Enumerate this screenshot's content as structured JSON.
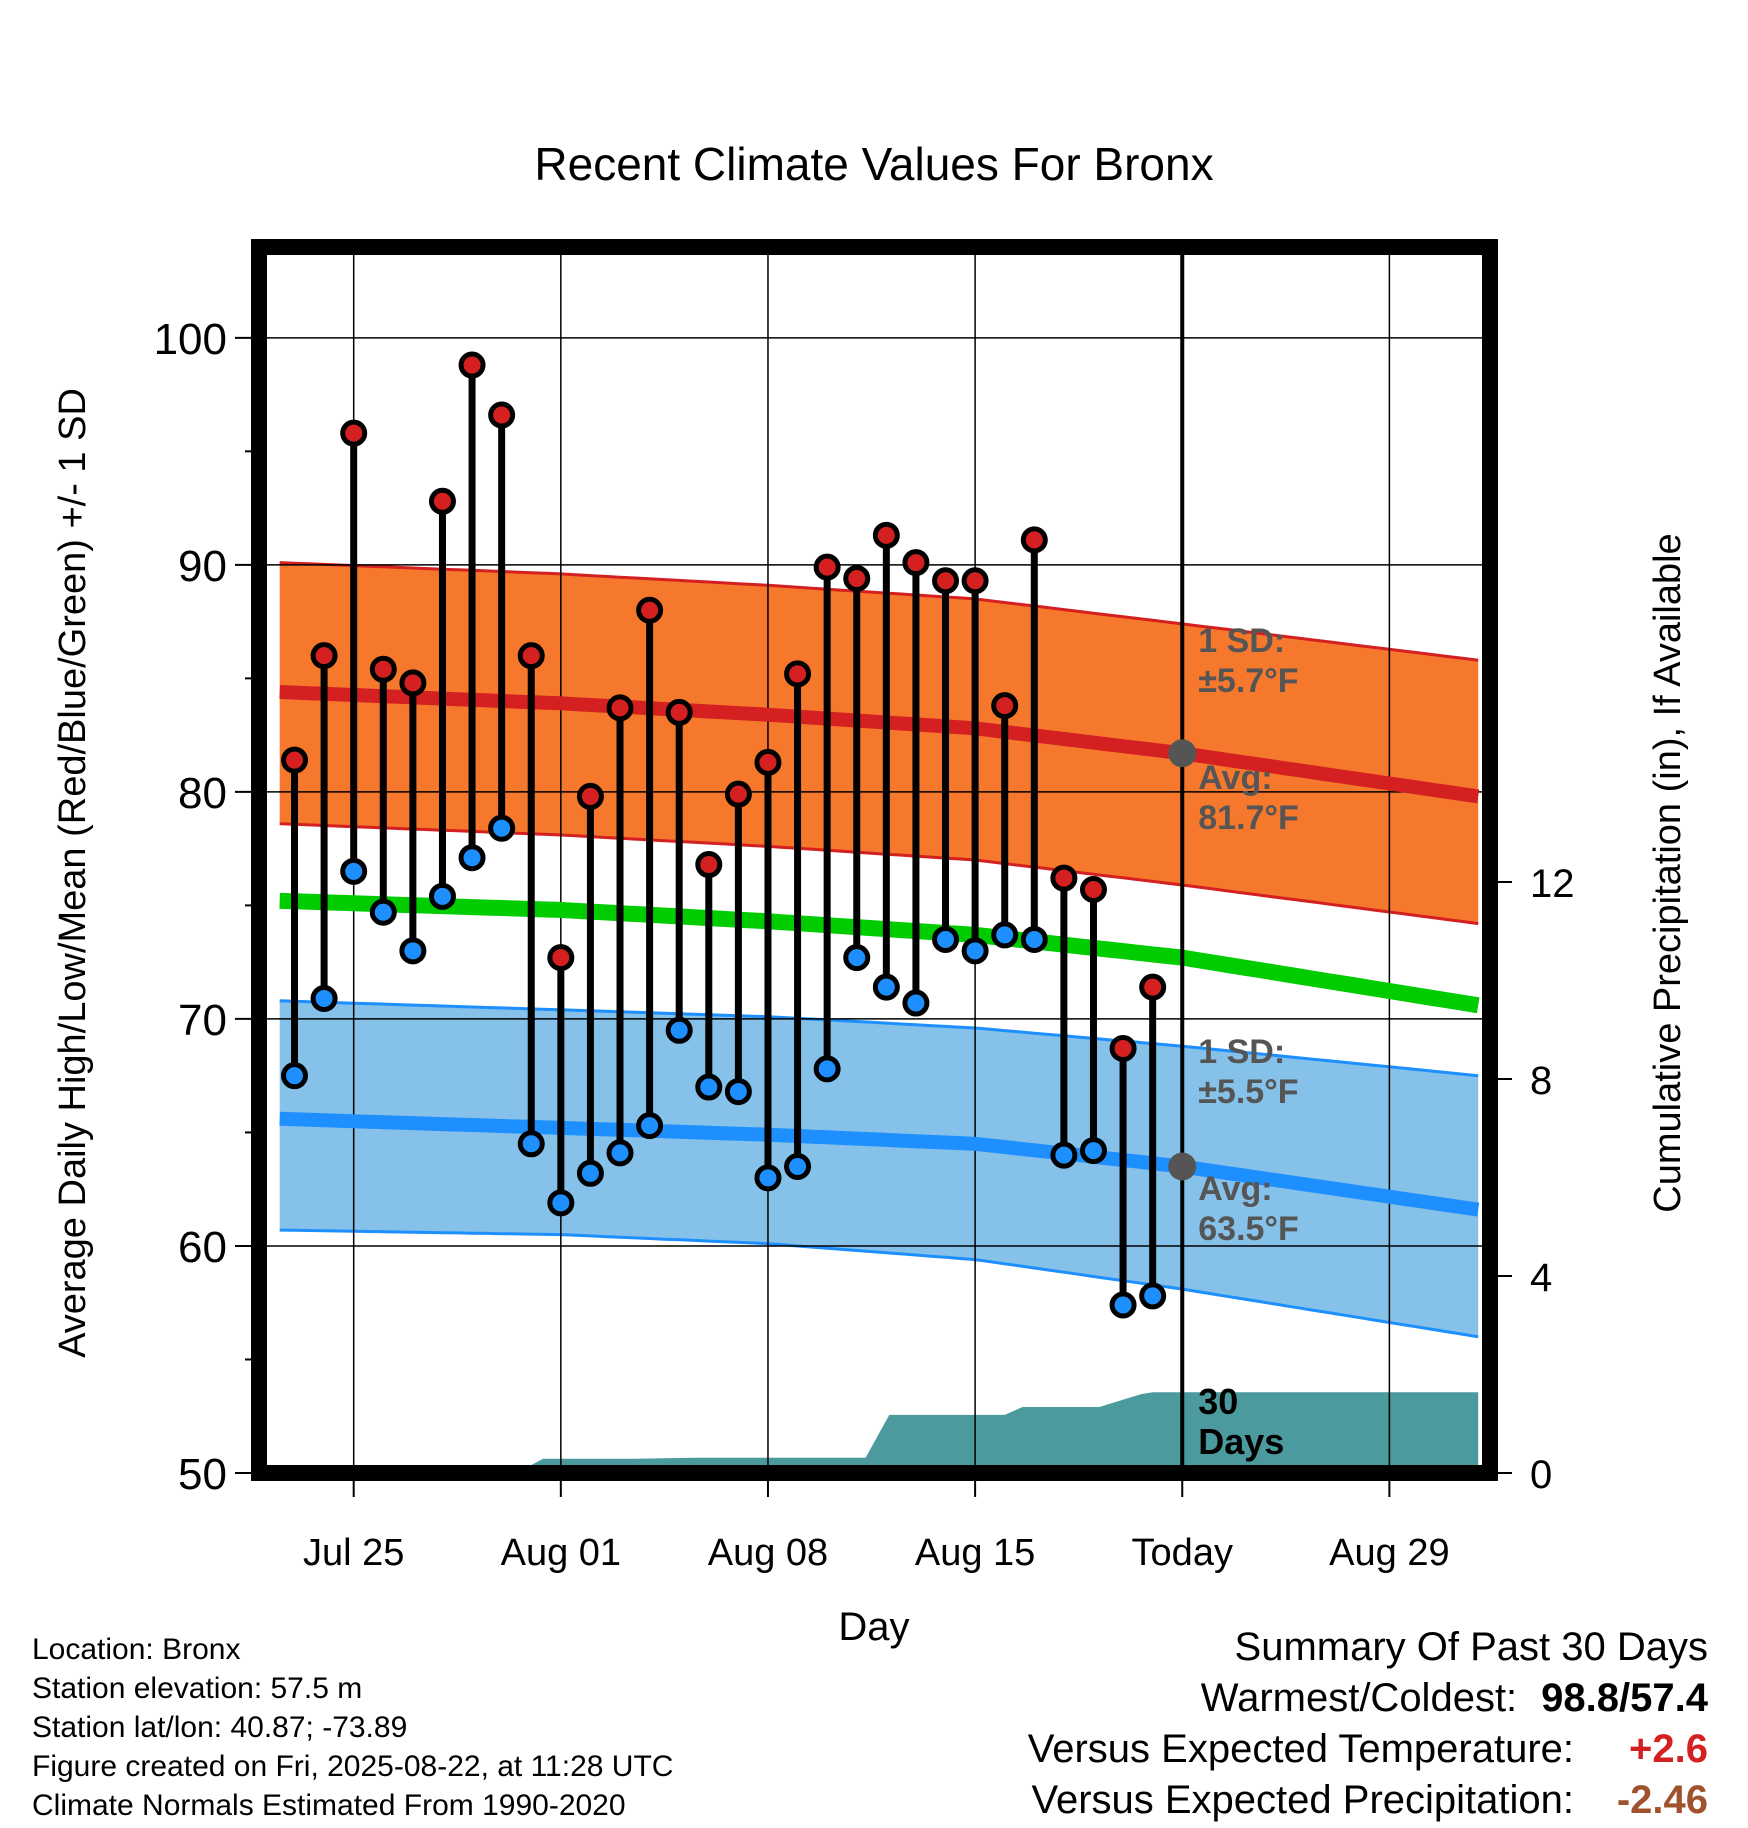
{
  "chart_data": {
    "type": "line",
    "title": "Recent Climate Values For Bronx",
    "xlabel": "Day",
    "ylabel": "Average Daily High/Low/Mean (Red/Blue/Green) +/- 1 SD",
    "y2label": "Cumulative Precipitation (in), If Available",
    "ylim": [
      50,
      104
    ],
    "y_ticks": [
      "50",
      "60",
      "70",
      "80",
      "90",
      "100"
    ],
    "y2lim": [
      0,
      20
    ],
    "y2_ticks": [
      "0",
      "4",
      "8",
      "12"
    ],
    "xlim": [
      -3.2,
      38.4
    ],
    "x_ticks": [
      {
        "day": 0,
        "label": "Jul 25"
      },
      {
        "day": 7,
        "label": "Aug 01"
      },
      {
        "day": 14,
        "label": "Aug 08"
      },
      {
        "day": 21,
        "label": "Aug 15"
      },
      {
        "day": 28,
        "label": "Today"
      },
      {
        "day": 35,
        "label": "Aug 29"
      }
    ],
    "today_day": 28,
    "colors": {
      "high_band": "#f5782d",
      "high_line": "#d42020",
      "low_band": "#85c1e8",
      "low_line": "#1e8fff",
      "mean_line": "#00cc00",
      "precip": "#4a9a9e",
      "high_dot": "#d42020",
      "low_dot": "#1e8fff",
      "avg_marker": "#555555"
    },
    "normals": {
      "days": [
        -2.5,
        7,
        14,
        21,
        28,
        38
      ],
      "high_avg": [
        84.4,
        83.9,
        83.4,
        82.8,
        81.7,
        79.8
      ],
      "high_sd_upper": [
        90.1,
        89.6,
        89.1,
        88.5,
        87.4,
        85.8
      ],
      "high_sd_lower": [
        78.6,
        78.1,
        77.6,
        77.0,
        75.9,
        74.2
      ],
      "low_avg": [
        65.6,
        65.2,
        64.9,
        64.5,
        63.5,
        61.6
      ],
      "low_sd_upper": [
        70.8,
        70.4,
        70.1,
        69.6,
        68.8,
        67.5
      ],
      "low_sd_lower": [
        60.7,
        60.5,
        60.1,
        59.4,
        58.1,
        56.0
      ],
      "mean_avg": [
        75.2,
        74.8,
        74.3,
        73.7,
        72.7,
        70.6
      ]
    },
    "series": [
      {
        "name": "High",
        "x": [
          -2,
          -1,
          0,
          1,
          2,
          3,
          4,
          5,
          6,
          7,
          8,
          9,
          10,
          11,
          12,
          13,
          14,
          15,
          16,
          17,
          18,
          19,
          20,
          21,
          22,
          23,
          24,
          25,
          26,
          27
        ],
        "values": [
          81.4,
          86.0,
          95.8,
          85.4,
          84.8,
          92.8,
          98.8,
          96.6,
          86.0,
          72.7,
          79.8,
          83.7,
          88.0,
          83.5,
          76.8,
          79.9,
          81.3,
          85.2,
          89.9,
          89.4,
          91.3,
          90.1,
          89.3,
          89.3,
          83.8,
          91.1,
          76.2,
          75.7,
          68.7,
          71.4
        ]
      },
      {
        "name": "Low",
        "x": [
          -2,
          -1,
          0,
          1,
          2,
          3,
          4,
          5,
          6,
          7,
          8,
          9,
          10,
          11,
          12,
          13,
          14,
          15,
          16,
          17,
          18,
          19,
          20,
          21,
          22,
          23,
          24,
          25,
          26,
          27
        ],
        "values": [
          67.5,
          70.9,
          76.5,
          74.7,
          73.0,
          75.4,
          77.1,
          78.4,
          64.5,
          61.9,
          63.2,
          64.1,
          65.3,
          69.5,
          67.0,
          66.8,
          63.0,
          63.5,
          67.8,
          72.7,
          71.4,
          70.7,
          73.5,
          73.0,
          73.7,
          73.5,
          64.0,
          64.2,
          57.4,
          57.8
        ]
      }
    ],
    "precipitation": {
      "x": [
        -2.5,
        3.3,
        4.7,
        5.5,
        6.4,
        7.6,
        9.5,
        11.5,
        13.0,
        17.3,
        18.1,
        19.4,
        20.1,
        21.0,
        22.0,
        22.6,
        23.2,
        24.9,
        25.2,
        26.6,
        27.0,
        38.0
      ],
      "values": [
        0.0,
        0.0,
        0.0,
        0.0,
        0.29,
        0.29,
        0.29,
        0.31,
        0.31,
        0.31,
        1.18,
        1.18,
        1.18,
        1.18,
        1.18,
        1.34,
        1.34,
        1.34,
        1.34,
        1.6,
        1.64,
        1.64
      ]
    },
    "annotations": {
      "high_sd": [
        "1 SD:",
        "±5.7°F"
      ],
      "high_avg": [
        "Avg:",
        "81.7°F"
      ],
      "low_sd": [
        "1 SD:",
        "±5.5°F"
      ],
      "low_avg": [
        "Avg:",
        "63.5°F"
      ],
      "days": [
        "30",
        "Days"
      ]
    }
  },
  "footer": {
    "location": "Location: Bronx",
    "elevation": "Station elevation: 57.5 m",
    "latlon": "Station lat/lon: 40.87; -73.89",
    "created": "Figure created on Fri, 2025-08-22, at 11:28 UTC",
    "normals": "Climate Normals Estimated From 1990-2020"
  },
  "summary": {
    "title": "Summary Of Past 30 Days",
    "warmest_label": "Warmest/Coldest:",
    "warmest_value": "98.8/57.4",
    "temp_label": "Versus Expected Temperature:",
    "temp_value": "+2.6",
    "temp_color": "#d42020",
    "precip_label": "Versus Expected Precipitation:",
    "precip_value": "-2.46",
    "precip_color": "#a0522d"
  }
}
